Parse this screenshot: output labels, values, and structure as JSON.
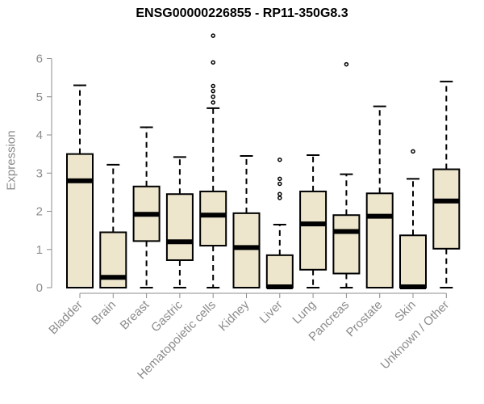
{
  "chart_data": {
    "type": "boxplot",
    "title": "ENSG00000226855 - RP11-350G8.3",
    "xlabel": "",
    "ylabel": "Expression",
    "ylim": [
      0,
      6.6
    ],
    "yticks": [
      0,
      1,
      2,
      3,
      4,
      5,
      6
    ],
    "grid": false,
    "legend": "none",
    "colors": {
      "box_fill": "#ede6cd",
      "stroke": "#000000",
      "axis_text": "#8c8c8c"
    },
    "categories": [
      "Bladder",
      "Brain",
      "Breast",
      "Gastric",
      "Hematopoietic cells",
      "Kidney",
      "Liver",
      "Lung",
      "Pancreas",
      "Prostate",
      "Skin",
      "Unknown / Other"
    ],
    "boxes": [
      {
        "category": "Bladder",
        "whisker_low": 0,
        "q1": 0,
        "median": 2.8,
        "q3": 3.5,
        "whisker_high": 5.3,
        "outliers": []
      },
      {
        "category": "Brain",
        "whisker_low": 0,
        "q1": 0,
        "median": 0.27,
        "q3": 1.45,
        "whisker_high": 3.22,
        "outliers": []
      },
      {
        "category": "Breast",
        "whisker_low": 0,
        "q1": 1.22,
        "median": 1.92,
        "q3": 2.65,
        "whisker_high": 4.2,
        "outliers": []
      },
      {
        "category": "Gastric",
        "whisker_low": 0,
        "q1": 0.72,
        "median": 1.2,
        "q3": 2.45,
        "whisker_high": 3.42,
        "outliers": []
      },
      {
        "category": "Hematopoietic cells",
        "whisker_low": 0,
        "q1": 1.1,
        "median": 1.9,
        "q3": 2.52,
        "whisker_high": 4.7,
        "outliers": [
          4.85,
          5.0,
          5.15,
          5.28,
          5.9,
          6.6
        ]
      },
      {
        "category": "Kidney",
        "whisker_low": 0,
        "q1": 0,
        "median": 1.05,
        "q3": 1.95,
        "whisker_high": 3.45,
        "outliers": []
      },
      {
        "category": "Liver",
        "whisker_low": 0,
        "q1": 0,
        "median": 0.02,
        "q3": 0.85,
        "whisker_high": 1.65,
        "outliers": [
          2.35,
          2.45,
          2.72,
          2.85,
          3.35
        ]
      },
      {
        "category": "Lung",
        "whisker_low": 0,
        "q1": 0.47,
        "median": 1.67,
        "q3": 2.52,
        "whisker_high": 3.47,
        "outliers": []
      },
      {
        "category": "Pancreas",
        "whisker_low": 0,
        "q1": 0.37,
        "median": 1.47,
        "q3": 1.9,
        "whisker_high": 2.97,
        "outliers": [
          5.85
        ]
      },
      {
        "category": "Prostate",
        "whisker_low": 0,
        "q1": 0,
        "median": 1.87,
        "q3": 2.47,
        "whisker_high": 4.75,
        "outliers": []
      },
      {
        "category": "Skin",
        "whisker_low": 0,
        "q1": 0,
        "median": 0.02,
        "q3": 1.37,
        "whisker_high": 2.85,
        "outliers": [
          3.57
        ]
      },
      {
        "category": "Unknown / Other",
        "whisker_low": 0,
        "q1": 1.02,
        "median": 2.27,
        "q3": 3.1,
        "whisker_high": 5.4,
        "outliers": []
      }
    ]
  }
}
